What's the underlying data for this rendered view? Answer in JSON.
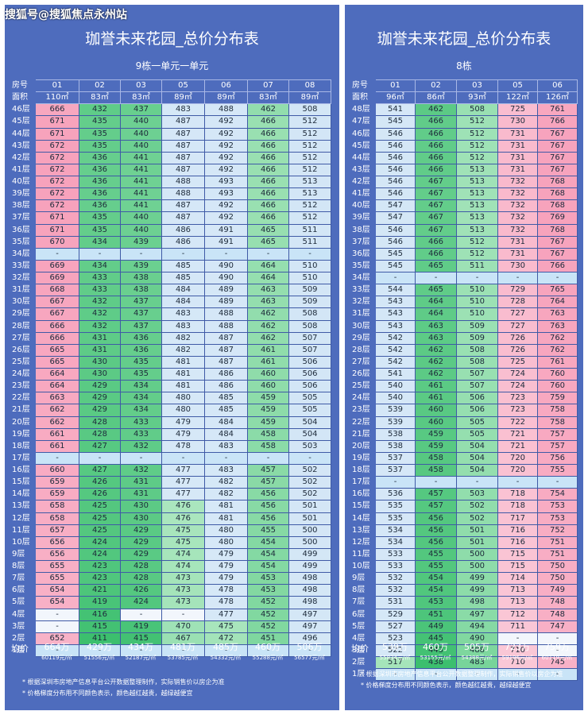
{
  "watermark": "搜狐号@搜狐焦点永州站",
  "left": {
    "title": "珈誉未来花园_总价分布表",
    "subtitle": "9栋一单元一单元",
    "header_label_room": "房号",
    "header_label_area": "面积",
    "units": [
      "01",
      "02",
      "03",
      "05",
      "06",
      "07",
      "08"
    ],
    "areas": [
      "110㎡",
      "83㎡",
      "83㎡",
      "89㎡",
      "89㎡",
      "83㎡",
      "89㎡"
    ],
    "avg_label": "均价",
    "totals": [
      "664万",
      "429万",
      "434万",
      "481万",
      "485万",
      "460万",
      "506万"
    ],
    "unit_prices": [
      "60119元/㎡",
      "51556元/㎡",
      "52187元/㎡",
      "53785元/㎡",
      "54332元/㎡",
      "55288元/㎡",
      "56577元/㎡"
    ],
    "rows": [
      {
        "floor": "46层",
        "v": [
          "666",
          "432",
          "437",
          "483",
          "488",
          "462",
          "508"
        ]
      },
      {
        "floor": "45层",
        "v": [
          "671",
          "435",
          "440",
          "487",
          "492",
          "466",
          "512"
        ]
      },
      {
        "floor": "44层",
        "v": [
          "671",
          "435",
          "440",
          "487",
          "492",
          "466",
          "512"
        ]
      },
      {
        "floor": "43层",
        "v": [
          "672",
          "435",
          "440",
          "487",
          "492",
          "466",
          "512"
        ]
      },
      {
        "floor": "42层",
        "v": [
          "672",
          "436",
          "441",
          "487",
          "492",
          "466",
          "512"
        ]
      },
      {
        "floor": "41层",
        "v": [
          "672",
          "436",
          "441",
          "487",
          "492",
          "466",
          "512"
        ]
      },
      {
        "floor": "40层",
        "v": [
          "672",
          "436",
          "441",
          "488",
          "493",
          "466",
          "513"
        ]
      },
      {
        "floor": "39层",
        "v": [
          "672",
          "436",
          "441",
          "488",
          "493",
          "466",
          "513"
        ]
      },
      {
        "floor": "38层",
        "v": [
          "672",
          "436",
          "441",
          "487",
          "492",
          "466",
          "512"
        ]
      },
      {
        "floor": "37层",
        "v": [
          "671",
          "435",
          "440",
          "487",
          "492",
          "466",
          "512"
        ]
      },
      {
        "floor": "36层",
        "v": [
          "671",
          "435",
          "440",
          "486",
          "491",
          "465",
          "511"
        ]
      },
      {
        "floor": "35层",
        "v": [
          "670",
          "434",
          "439",
          "486",
          "491",
          "465",
          "511"
        ]
      },
      {
        "floor": "34层",
        "v": [
          "-",
          "-",
          "-",
          "-",
          "-",
          "-",
          "-"
        ]
      },
      {
        "floor": "33层",
        "v": [
          "669",
          "434",
          "439",
          "485",
          "490",
          "464",
          "510"
        ]
      },
      {
        "floor": "32层",
        "v": [
          "669",
          "433",
          "438",
          "485",
          "490",
          "464",
          "510"
        ]
      },
      {
        "floor": "31层",
        "v": [
          "668",
          "433",
          "438",
          "484",
          "489",
          "463",
          "509"
        ]
      },
      {
        "floor": "30层",
        "v": [
          "667",
          "432",
          "437",
          "484",
          "489",
          "463",
          "509"
        ]
      },
      {
        "floor": "29层",
        "v": [
          "667",
          "432",
          "437",
          "483",
          "488",
          "462",
          "508"
        ]
      },
      {
        "floor": "28层",
        "v": [
          "666",
          "432",
          "437",
          "483",
          "488",
          "462",
          "508"
        ]
      },
      {
        "floor": "27层",
        "v": [
          "666",
          "431",
          "436",
          "482",
          "487",
          "462",
          "507"
        ]
      },
      {
        "floor": "26层",
        "v": [
          "665",
          "431",
          "436",
          "482",
          "487",
          "461",
          "507"
        ]
      },
      {
        "floor": "25层",
        "v": [
          "665",
          "430",
          "435",
          "481",
          "487",
          "461",
          "506"
        ]
      },
      {
        "floor": "24层",
        "v": [
          "664",
          "430",
          "435",
          "481",
          "486",
          "460",
          "506"
        ]
      },
      {
        "floor": "23层",
        "v": [
          "664",
          "429",
          "434",
          "481",
          "486",
          "460",
          "506"
        ]
      },
      {
        "floor": "22层",
        "v": [
          "663",
          "429",
          "434",
          "480",
          "485",
          "459",
          "505"
        ]
      },
      {
        "floor": "21层",
        "v": [
          "662",
          "429",
          "434",
          "480",
          "485",
          "459",
          "505"
        ]
      },
      {
        "floor": "20层",
        "v": [
          "662",
          "428",
          "433",
          "479",
          "484",
          "459",
          "504"
        ]
      },
      {
        "floor": "19层",
        "v": [
          "661",
          "428",
          "433",
          "479",
          "484",
          "458",
          "504"
        ]
      },
      {
        "floor": "18层",
        "v": [
          "661",
          "427",
          "432",
          "478",
          "483",
          "458",
          "503"
        ]
      },
      {
        "floor": "17层",
        "v": [
          "-",
          "-",
          "-",
          "-",
          "-",
          "-",
          "-"
        ]
      },
      {
        "floor": "16层",
        "v": [
          "660",
          "427",
          "432",
          "477",
          "483",
          "457",
          "502"
        ]
      },
      {
        "floor": "15层",
        "v": [
          "659",
          "426",
          "431",
          "477",
          "482",
          "457",
          "502"
        ]
      },
      {
        "floor": "14层",
        "v": [
          "659",
          "426",
          "431",
          "477",
          "482",
          "456",
          "502"
        ]
      },
      {
        "floor": "13层",
        "v": [
          "658",
          "425",
          "430",
          "476",
          "481",
          "456",
          "501"
        ]
      },
      {
        "floor": "12层",
        "v": [
          "658",
          "425",
          "430",
          "476",
          "481",
          "456",
          "501"
        ]
      },
      {
        "floor": "11层",
        "v": [
          "657",
          "425",
          "429",
          "475",
          "480",
          "455",
          "500"
        ]
      },
      {
        "floor": "10层",
        "v": [
          "656",
          "424",
          "429",
          "475",
          "480",
          "454",
          "500"
        ]
      },
      {
        "floor": "9层",
        "v": [
          "656",
          "424",
          "429",
          "474",
          "479",
          "454",
          "499"
        ]
      },
      {
        "floor": "8层",
        "v": [
          "655",
          "423",
          "428",
          "474",
          "479",
          "454",
          "499"
        ]
      },
      {
        "floor": "7层",
        "v": [
          "655",
          "423",
          "428",
          "473",
          "479",
          "453",
          "498"
        ]
      },
      {
        "floor": "6层",
        "v": [
          "654",
          "421",
          "426",
          "473",
          "478",
          "453",
          "498"
        ]
      },
      {
        "floor": "5层",
        "v": [
          "654",
          "419",
          "424",
          "473",
          "478",
          "452",
          "498"
        ]
      },
      {
        "floor": "4层",
        "v": [
          "-",
          "416",
          "-",
          "-",
          "477",
          "452",
          "497"
        ]
      },
      {
        "floor": "3层",
        "v": [
          "-",
          "415",
          "419",
          "470",
          "475",
          "452",
          "497"
        ]
      },
      {
        "floor": "2层",
        "v": [
          "652",
          "411",
          "415",
          "467",
          "472",
          "451",
          "496"
        ]
      },
      {
        "floor": "1层",
        "v": [
          "-",
          "-",
          "-",
          "-",
          "-",
          "-",
          "-"
        ]
      }
    ],
    "notes": [
      "* 根据深圳市房地产信息平台公开数据整理制作，实际销售价以房企为准",
      "* 价格梯度分布用不同颜色表示，颜色越红越贵，越绿越便宜"
    ]
  },
  "right": {
    "title": "珈誉未来花园_总价分布表",
    "subtitle": "8栋",
    "header_label_room": "房号",
    "header_label_area": "面积",
    "units": [
      "01",
      "02",
      "03",
      "05",
      "06"
    ],
    "areas": [
      "96㎡",
      "86㎡",
      "93㎡",
      "122㎡",
      "126㎡"
    ],
    "avg_label": "均价",
    "totals": [
      "539万",
      "460万",
      "505万",
      "723万",
      "759万"
    ],
    "unit_prices": [
      "55834元/㎡",
      "53155元/㎡",
      "54388元/㎡",
      "59196元/㎡",
      "60119元/㎡"
    ],
    "rows": [
      {
        "floor": "48层",
        "v": [
          "541",
          "462",
          "508",
          "725",
          "761"
        ]
      },
      {
        "floor": "47层",
        "v": [
          "545",
          "466",
          "512",
          "730",
          "766"
        ]
      },
      {
        "floor": "46层",
        "v": [
          "546",
          "466",
          "512",
          "731",
          "767"
        ]
      },
      {
        "floor": "45层",
        "v": [
          "546",
          "466",
          "512",
          "731",
          "767"
        ]
      },
      {
        "floor": "44层",
        "v": [
          "546",
          "466",
          "512",
          "731",
          "767"
        ]
      },
      {
        "floor": "43层",
        "v": [
          "546",
          "466",
          "513",
          "731",
          "767"
        ]
      },
      {
        "floor": "42层",
        "v": [
          "546",
          "467",
          "513",
          "732",
          "768"
        ]
      },
      {
        "floor": "41层",
        "v": [
          "546",
          "467",
          "513",
          "732",
          "768"
        ]
      },
      {
        "floor": "40层",
        "v": [
          "547",
          "467",
          "513",
          "732",
          "768"
        ]
      },
      {
        "floor": "39层",
        "v": [
          "547",
          "467",
          "513",
          "732",
          "769"
        ]
      },
      {
        "floor": "38层",
        "v": [
          "546",
          "467",
          "513",
          "732",
          "768"
        ]
      },
      {
        "floor": "37层",
        "v": [
          "546",
          "466",
          "512",
          "731",
          "767"
        ]
      },
      {
        "floor": "36层",
        "v": [
          "545",
          "466",
          "512",
          "731",
          "767"
        ]
      },
      {
        "floor": "35层",
        "v": [
          "545",
          "465",
          "511",
          "730",
          "766"
        ]
      },
      {
        "floor": "34层",
        "v": [
          "-",
          "-",
          "-",
          "-",
          "-"
        ]
      },
      {
        "floor": "33层",
        "v": [
          "544",
          "465",
          "510",
          "729",
          "765"
        ]
      },
      {
        "floor": "32层",
        "v": [
          "543",
          "464",
          "510",
          "728",
          "764"
        ]
      },
      {
        "floor": "31层",
        "v": [
          "543",
          "464",
          "510",
          "727",
          "763"
        ]
      },
      {
        "floor": "30层",
        "v": [
          "543",
          "463",
          "509",
          "727",
          "763"
        ]
      },
      {
        "floor": "29层",
        "v": [
          "542",
          "463",
          "509",
          "726",
          "762"
        ]
      },
      {
        "floor": "28层",
        "v": [
          "542",
          "462",
          "508",
          "726",
          "762"
        ]
      },
      {
        "floor": "27层",
        "v": [
          "542",
          "462",
          "508",
          "725",
          "761"
        ]
      },
      {
        "floor": "26层",
        "v": [
          "541",
          "462",
          "507",
          "724",
          "760"
        ]
      },
      {
        "floor": "25层",
        "v": [
          "540",
          "461",
          "507",
          "724",
          "760"
        ]
      },
      {
        "floor": "24层",
        "v": [
          "540",
          "461",
          "506",
          "723",
          "759"
        ]
      },
      {
        "floor": "23层",
        "v": [
          "539",
          "460",
          "506",
          "723",
          "758"
        ]
      },
      {
        "floor": "22层",
        "v": [
          "539",
          "460",
          "505",
          "722",
          "758"
        ]
      },
      {
        "floor": "21层",
        "v": [
          "538",
          "459",
          "505",
          "721",
          "757"
        ]
      },
      {
        "floor": "20层",
        "v": [
          "538",
          "459",
          "504",
          "721",
          "757"
        ]
      },
      {
        "floor": "19层",
        "v": [
          "537",
          "458",
          "504",
          "720",
          "756"
        ]
      },
      {
        "floor": "18层",
        "v": [
          "537",
          "458",
          "504",
          "720",
          "755"
        ]
      },
      {
        "floor": "17层",
        "v": [
          "-",
          "-",
          "-",
          "-",
          "-"
        ]
      },
      {
        "floor": "16层",
        "v": [
          "536",
          "457",
          "503",
          "718",
          "754"
        ]
      },
      {
        "floor": "15层",
        "v": [
          "535",
          "457",
          "502",
          "718",
          "753"
        ]
      },
      {
        "floor": "14层",
        "v": [
          "535",
          "456",
          "502",
          "717",
          "753"
        ]
      },
      {
        "floor": "13层",
        "v": [
          "534",
          "456",
          "501",
          "716",
          "752"
        ]
      },
      {
        "floor": "12层",
        "v": [
          "534",
          "456",
          "501",
          "716",
          "751"
        ]
      },
      {
        "floor": "11层",
        "v": [
          "533",
          "455",
          "500",
          "715",
          "751"
        ]
      },
      {
        "floor": "10层",
        "v": [
          "533",
          "455",
          "500",
          "715",
          "750"
        ]
      },
      {
        "floor": "9层",
        "v": [
          "532",
          "454",
          "499",
          "714",
          "750"
        ]
      },
      {
        "floor": "8层",
        "v": [
          "532",
          "454",
          "499",
          "713",
          "749"
        ]
      },
      {
        "floor": "7层",
        "v": [
          "531",
          "453",
          "498",
          "713",
          "748"
        ]
      },
      {
        "floor": "6层",
        "v": [
          "529",
          "451",
          "497",
          "712",
          "748"
        ]
      },
      {
        "floor": "5层",
        "v": [
          "527",
          "449",
          "494",
          "711",
          "747"
        ]
      },
      {
        "floor": "4层",
        "v": [
          "523",
          "445",
          "490",
          "-",
          "-"
        ]
      },
      {
        "floor": "3层",
        "v": [
          "522",
          "443",
          "488",
          "710",
          "-"
        ]
      },
      {
        "floor": "2层",
        "v": [
          "517",
          "438",
          "483",
          "710",
          "745"
        ]
      },
      {
        "floor": "1层",
        "v": [
          "-",
          "-",
          "-",
          "-",
          "-"
        ]
      }
    ],
    "notes": [
      "* 根据深圳市房地产信息平台公开数据整理制作，实际销售价以房企为准",
      "* 价格梯度分布用不同颜色表示，颜色越红越贵，越绿越便宜"
    ]
  },
  "colors": {
    "panel": "#4e6cbd",
    "expensive": "#f7a1bb",
    "cheap": "#3cbf6e",
    "empty_row": "#c9e4f7"
  }
}
